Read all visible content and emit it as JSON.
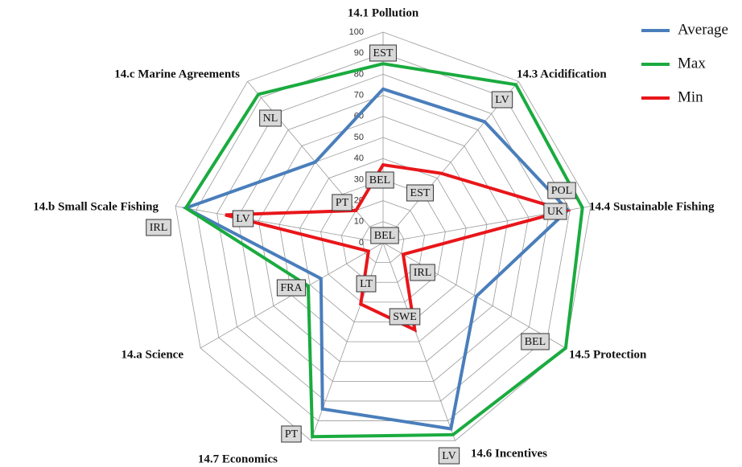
{
  "chart_data": {
    "type": "radar",
    "categories": [
      "14.1 Pollution",
      "14.3 Acidification",
      "14.4 Sustainable Fishing",
      "14.5 Protection",
      "14.6 Incentives",
      "14.7 Economics",
      "14.a Science",
      "14.b Small Scale Fishing",
      "14.c Marine Agreements"
    ],
    "series": [
      {
        "name": "Average",
        "color": "#4a7ebb",
        "values": [
          73,
          75,
          89,
          51,
          94,
          84,
          34,
          95,
          50
        ]
      },
      {
        "name": "Max",
        "color": "#1aab3f",
        "values": [
          85,
          98,
          96,
          100,
          97,
          98,
          41,
          95,
          92
        ],
        "labels": [
          "EST",
          "LV",
          "POL",
          "BEL",
          "LV",
          "PT",
          "FRA",
          "IRL",
          "NL"
        ]
      },
      {
        "name": "Min",
        "color": "#e8161a",
        "values": [
          37,
          43,
          88,
          11,
          44,
          31,
          8,
          76,
          20
        ],
        "labels": [
          "BEL",
          "EST",
          "UK",
          "IRL",
          "SWE",
          "LT",
          "BEL",
          "LV",
          "PT"
        ]
      }
    ],
    "ylim": [
      0,
      100
    ],
    "yticks": [
      0,
      10,
      20,
      30,
      40,
      50,
      60,
      70,
      80,
      90,
      100
    ],
    "grid": true,
    "legend": "upper right"
  }
}
